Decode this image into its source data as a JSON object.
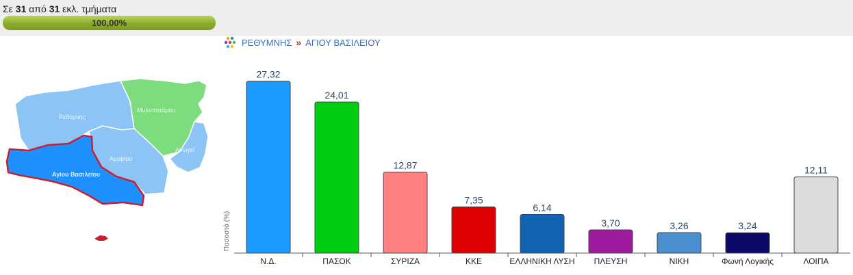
{
  "progress": {
    "prefix": "Σε",
    "counted": "31",
    "middle": "από",
    "total": "31",
    "suffix": "εκλ. τμήματα",
    "percent_label": "100,00%",
    "percent": 100
  },
  "breadcrumb": {
    "icon": "colored-dots-icon",
    "parent": "ΡΕΘΥΜΝΗΣ",
    "separator": "»",
    "current": "ΑΓΙΟΥ ΒΑΣΙΛΕΙΟΥ"
  },
  "map": {
    "regions": [
      {
        "name": "Ρεθύμνης",
        "color": "#8cc4f5"
      },
      {
        "name": "Μυλοποτάμου",
        "color": "#7ddc7d"
      },
      {
        "name": "Ανωγεί",
        "color": "#8cc4f5"
      },
      {
        "name": "Αμαρίου",
        "color": "#8cc4f5"
      },
      {
        "name": "Αγίου Βασιλείου",
        "color": "#1e90ff",
        "selected": true
      }
    ],
    "selected_outline": "#cc1f2d"
  },
  "chart_data": {
    "type": "bar",
    "ylabel": "Ποσοστά (%)",
    "ylim": [
      0,
      30
    ],
    "categories": [
      "Ν.Δ.",
      "ΠΑΣΟΚ",
      "ΣΥΡΙΖΑ",
      "ΚΚΕ",
      "ΕΛΛΗΝΙΚΗ ΛΥΣΗ",
      "ΠΛΕΥΣΗ",
      "ΝΙΚΗ",
      "Φωνή Λογικής",
      "ΛΟΙΠΑ"
    ],
    "values": [
      27.32,
      24.01,
      12.87,
      7.35,
      6.14,
      3.7,
      3.26,
      3.24,
      12.11
    ],
    "labels": [
      "27,32",
      "24,01",
      "12,87",
      "7,35",
      "6,14",
      "3,70",
      "3,26",
      "3,24",
      "12,11"
    ],
    "colors": [
      "#1a9bff",
      "#00cc11",
      "#ff8080",
      "#dd0000",
      "#1263b4",
      "#9e1a9e",
      "#4a8fd0",
      "#0a0a66",
      "#dcdcdc"
    ],
    "grid": false
  }
}
